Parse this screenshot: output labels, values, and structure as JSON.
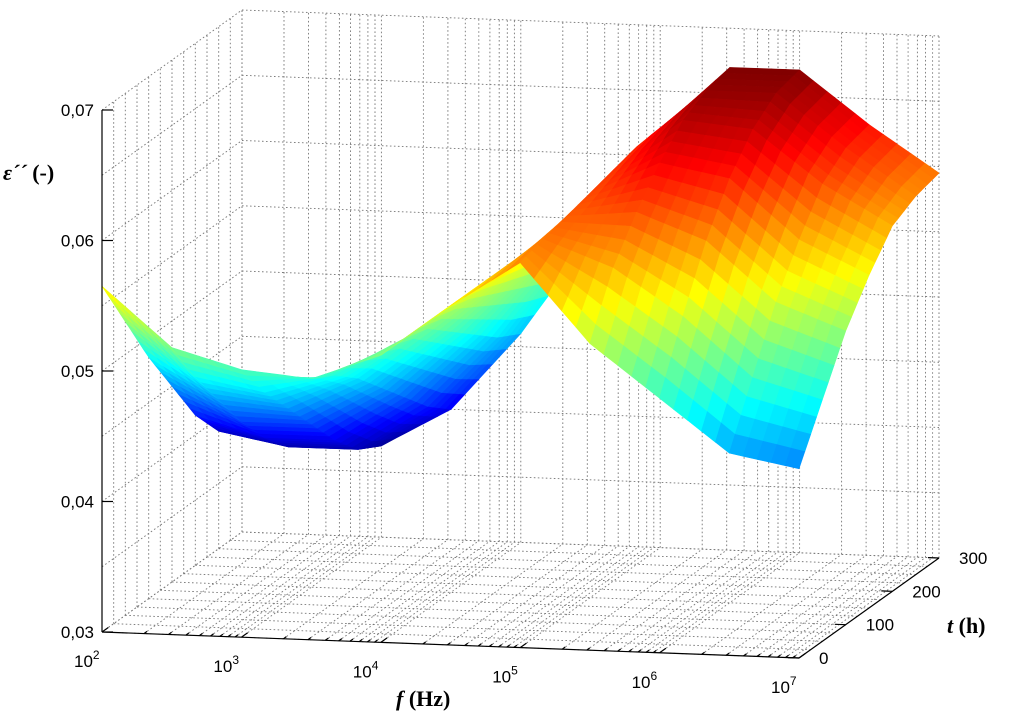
{
  "chart_data": {
    "type": "surface",
    "title": "",
    "xlabel": {
      "italic": "f",
      "rest": " (Hz)"
    },
    "ylabel": {
      "italic": "t",
      "rest": " (h)"
    },
    "zlabel": {
      "italic": "ε´´",
      "rest": " (-)"
    },
    "x_scale": "log",
    "x_ticks": [
      {
        "base": "10",
        "exp": "2"
      },
      {
        "base": "10",
        "exp": "3"
      },
      {
        "base": "10",
        "exp": "4"
      },
      {
        "base": "10",
        "exp": "5"
      },
      {
        "base": "10",
        "exp": "6"
      },
      {
        "base": "10",
        "exp": "7"
      }
    ],
    "y_ticks": [
      "0",
      "100",
      "200",
      "300"
    ],
    "z_ticks": [
      "0,03",
      "0,04",
      "0,05",
      "0,06",
      "0,07"
    ],
    "xlim": [
      100,
      10000000
    ],
    "ylim": [
      0,
      300
    ],
    "zlim": [
      0.03,
      0.07
    ],
    "grid": true,
    "colormap": "jet",
    "colormap_colors": [
      "#00008f",
      "#0000ff",
      "#0080ff",
      "#00ffff",
      "#80ff80",
      "#ffff00",
      "#ff8000",
      "#ff0000",
      "#800000"
    ],
    "log10_f": [
      2.0,
      2.5,
      3.0,
      3.5,
      4.0,
      4.5,
      5.0,
      5.5,
      6.0,
      6.5,
      7.0
    ],
    "t_h": [
      0,
      50,
      100,
      150,
      200,
      250,
      300
    ],
    "eps_imag": [
      [
        0.0565,
        0.052,
        0.0505,
        0.05,
        0.052,
        0.056,
        0.0595,
        0.0535,
        0.0495,
        0.0455,
        0.0445
      ],
      [
        0.0525,
        0.0485,
        0.0475,
        0.049,
        0.052,
        0.056,
        0.06,
        0.058,
        0.0545,
        0.05,
        0.0485
      ],
      [
        0.0485,
        0.0455,
        0.045,
        0.0475,
        0.0515,
        0.0555,
        0.0605,
        0.061,
        0.059,
        0.0545,
        0.0525
      ],
      [
        0.045,
        0.0425,
        0.0425,
        0.0455,
        0.05,
        0.055,
        0.061,
        0.0635,
        0.0625,
        0.058,
        0.0555
      ],
      [
        0.0415,
        0.04,
        0.04,
        0.0435,
        0.0485,
        0.0545,
        0.0615,
        0.0655,
        0.065,
        0.061,
        0.058
      ],
      [
        0.039,
        0.038,
        0.038,
        0.0415,
        0.047,
        0.054,
        0.062,
        0.0665,
        0.0665,
        0.0625,
        0.059
      ],
      [
        0.038,
        0.037,
        0.037,
        0.04,
        0.046,
        0.0535,
        0.062,
        0.067,
        0.067,
        0.063,
        0.0595
      ]
    ]
  }
}
